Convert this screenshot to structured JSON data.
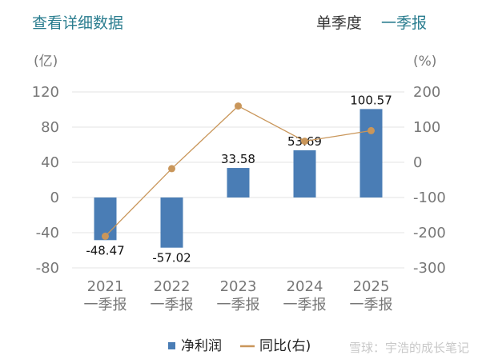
{
  "header": {
    "detail_link": "查看详细数据",
    "period_label": "单季度",
    "period_value": "一季报"
  },
  "colors": {
    "bar": "#4a7db5",
    "line": "#c9965a",
    "grid": "#e3e3e3",
    "accent": "#2a7d8f"
  },
  "chart_data": {
    "type": "bar",
    "categories": [
      {
        "year": "2021",
        "quarter": "一季报"
      },
      {
        "year": "2022",
        "quarter": "一季报"
      },
      {
        "year": "2023",
        "quarter": "一季报"
      },
      {
        "year": "2024",
        "quarter": "一季报"
      },
      {
        "year": "2025",
        "quarter": "一季报"
      }
    ],
    "left_axis": {
      "unit": "(亿)",
      "ylim": [
        -80,
        120
      ],
      "ticks": [
        "120",
        "80",
        "40",
        "0",
        "-40",
        "-80"
      ]
    },
    "right_axis": {
      "unit": "(%)",
      "ylim": [
        -300,
        200
      ],
      "ticks": [
        "200",
        "100",
        "0",
        "-100",
        "-200",
        "-300"
      ]
    },
    "series": [
      {
        "name": "净利润",
        "type": "bar",
        "axis": "left",
        "values": [
          -48.47,
          -57.02,
          33.58,
          53.69,
          100.57
        ],
        "labels": [
          "-48.47",
          "-57.02",
          "33.58",
          "53.69",
          "100.57"
        ]
      },
      {
        "name": "同比(右)",
        "type": "line",
        "axis": "right",
        "values": [
          -210,
          -18,
          160,
          60,
          90
        ]
      }
    ],
    "legend_position": "bottom",
    "grid": true
  },
  "watermark": "雪球：宇浩的成长笔记"
}
